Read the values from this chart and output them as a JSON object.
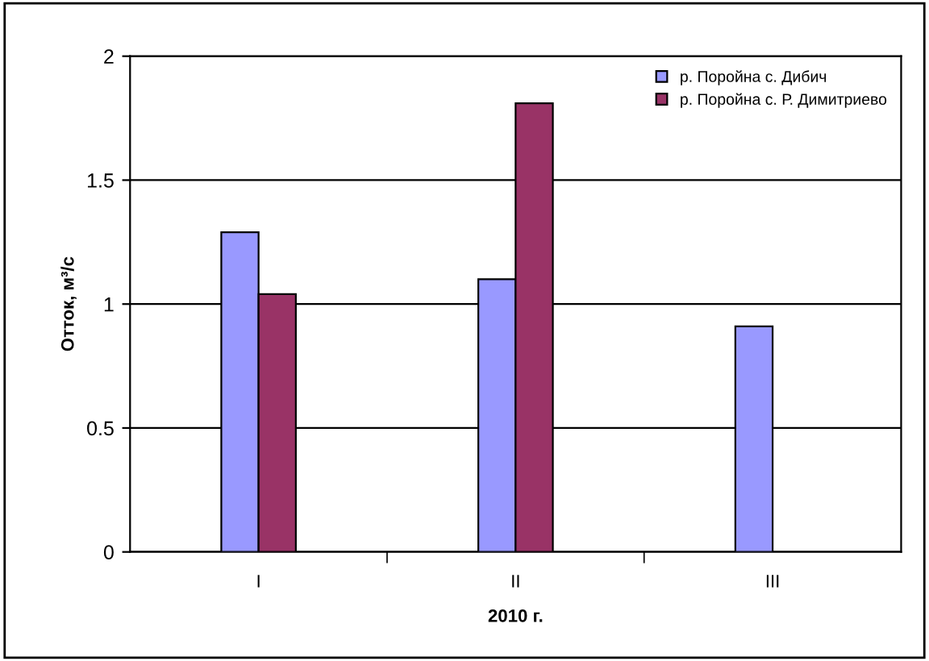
{
  "chart_data": {
    "type": "bar",
    "xlabel": "2010 г.",
    "ylabel": "Отток, м³/с",
    "categories": [
      "I",
      "II",
      "III"
    ],
    "series": [
      {
        "name": "р. Поройна с. Дибич",
        "color": "#9999ff",
        "values": [
          1.29,
          1.1,
          0.91
        ]
      },
      {
        "name": "р. Поройна с. Р. Димитриево",
        "color": "#993366",
        "values": [
          1.04,
          1.81,
          null
        ]
      }
    ],
    "ylim": [
      0,
      2
    ],
    "yticks": [
      0,
      0.5,
      1,
      1.5,
      2
    ],
    "grid": "y",
    "legend": "top right"
  }
}
